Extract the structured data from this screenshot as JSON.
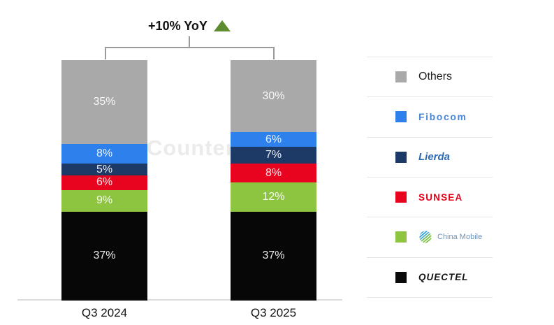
{
  "watermark": "Counterp",
  "annotation": {
    "text": "+10% YoY",
    "triangle_color": "#5e8c30"
  },
  "chart_data": {
    "type": "bar",
    "stacked": true,
    "unit": "%",
    "categories": [
      "Q3 2024",
      "Q3 2025"
    ],
    "stack_order": "top-to-bottom",
    "series": [
      {
        "name": "Others",
        "color": "#a9a9a9",
        "values": [
          35,
          30
        ]
      },
      {
        "name": "Fibocom",
        "color": "#2e80ec",
        "values": [
          8,
          6
        ]
      },
      {
        "name": "Lierda",
        "color": "#1d3a66",
        "values": [
          5,
          7
        ]
      },
      {
        "name": "Sunsea",
        "color": "#e8041f",
        "values": [
          6,
          8
        ]
      },
      {
        "name": "China Mobile",
        "color": "#8dc440",
        "values": [
          9,
          12
        ]
      },
      {
        "name": "Quectel",
        "color": "#070707",
        "values": [
          37,
          37
        ]
      }
    ],
    "yoy_annotation": "+10% YoY",
    "legend_position": "right",
    "ylim": [
      0,
      100
    ],
    "grid": false
  },
  "legend": {
    "items": [
      {
        "label": "Others",
        "swatch_color": "#a9a9a9",
        "brand_color": "#1f1f1f"
      },
      {
        "label": "Fibocom",
        "swatch_color": "#2e80ec",
        "brand_color": "#4a86d8"
      },
      {
        "label": "Lierda",
        "swatch_color": "#1d3a66",
        "brand_color": "#2d6cb3"
      },
      {
        "label": "SUNSEA",
        "swatch_color": "#e8041f",
        "brand_color": "#e60019"
      },
      {
        "label": "China Mobile",
        "swatch_color": "#8dc440",
        "brand_color": "#6e93bd",
        "icon": "china-mobile-globe-icon"
      },
      {
        "label": "QUECTEL",
        "swatch_color": "#0a0a0a",
        "brand_color": "#141414"
      }
    ]
  }
}
